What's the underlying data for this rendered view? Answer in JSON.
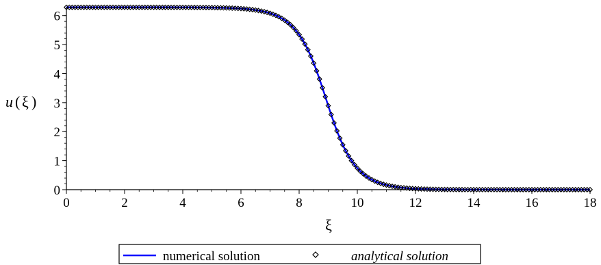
{
  "chart_data": {
    "type": "line",
    "title": "",
    "xlabel": "ξ",
    "ylabel": "u(ξ)",
    "ylabel_parts": {
      "func": "u",
      "open": "(",
      "var": "ξ",
      "close": ")"
    },
    "xlim": [
      0,
      18
    ],
    "ylim": [
      0,
      6.3
    ],
    "xticks": [
      0,
      2,
      4,
      6,
      8,
      10,
      12,
      14,
      16,
      18
    ],
    "yticks": [
      0,
      1,
      2,
      3,
      4,
      5,
      6
    ],
    "grid": false,
    "legend_position": "bottom-center",
    "function": "u(ξ) = 4·atan(exp(-1.55·(ξ - 8.92)))",
    "x_range": [
      0,
      18
    ],
    "samples": 181,
    "series": [
      {
        "name": "numerical solution",
        "style": "line",
        "color": "#0000ff"
      },
      {
        "name": "analytical solution",
        "style": "markers",
        "marker": "diamond",
        "color": "#000000"
      }
    ]
  }
}
